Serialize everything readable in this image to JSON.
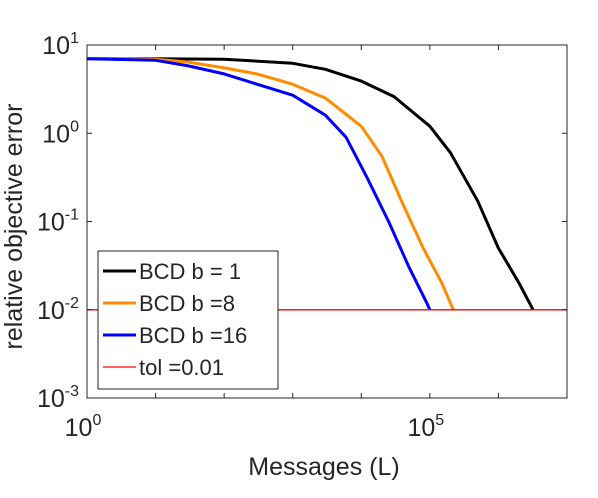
{
  "chart_data": {
    "type": "line",
    "xlabel": "Messages (L)",
    "ylabel": "relative objective error",
    "x_scale": "log",
    "y_scale": "log",
    "xlim": [
      1,
      10000000
    ],
    "ylim": [
      0.001,
      10
    ],
    "x_ticks": [
      {
        "value": 1,
        "base": "10",
        "exp": "0"
      },
      {
        "value": 100000,
        "base": "10",
        "exp": "5"
      }
    ],
    "y_ticks": [
      {
        "value": 0.001,
        "base": "10",
        "exp": "-3"
      },
      {
        "value": 0.01,
        "base": "10",
        "exp": "-2"
      },
      {
        "value": 0.1,
        "base": "10",
        "exp": "-1"
      },
      {
        "value": 1,
        "base": "10",
        "exp": "0"
      },
      {
        "value": 10,
        "base": "10",
        "exp": "1"
      }
    ],
    "grid": false,
    "legend_position": "bottom-left",
    "series": [
      {
        "name": "BCD b = 1",
        "color": "#000000",
        "points": [
          [
            1,
            7.0
          ],
          [
            10,
            7.0
          ],
          [
            100,
            6.9
          ],
          [
            1000,
            6.2
          ],
          [
            3000,
            5.3
          ],
          [
            10000,
            3.9
          ],
          [
            30000,
            2.6
          ],
          [
            100000,
            1.2
          ],
          [
            200000,
            0.6
          ],
          [
            500000,
            0.17
          ],
          [
            1000000,
            0.05
          ],
          [
            2000000,
            0.02
          ],
          [
            3200000,
            0.01
          ]
        ]
      },
      {
        "name": "BCD b =8",
        "color": "#ff8c00",
        "points": [
          [
            1,
            7.0
          ],
          [
            10,
            6.9
          ],
          [
            30,
            6.4
          ],
          [
            100,
            5.5
          ],
          [
            300,
            4.7
          ],
          [
            1000,
            3.6
          ],
          [
            3000,
            2.5
          ],
          [
            10000,
            1.2
          ],
          [
            20000,
            0.55
          ],
          [
            40000,
            0.16
          ],
          [
            80000,
            0.05
          ],
          [
            150000,
            0.02
          ],
          [
            220000,
            0.01
          ]
        ]
      },
      {
        "name": "BCD b =16",
        "color": "#0000ff",
        "points": [
          [
            1,
            7.0
          ],
          [
            10,
            6.7
          ],
          [
            30,
            5.8
          ],
          [
            100,
            4.7
          ],
          [
            300,
            3.6
          ],
          [
            1000,
            2.7
          ],
          [
            3000,
            1.6
          ],
          [
            6000,
            0.9
          ],
          [
            12000,
            0.32
          ],
          [
            25000,
            0.1
          ],
          [
            50000,
            0.03
          ],
          [
            90000,
            0.012
          ],
          [
            100000,
            0.01
          ]
        ]
      },
      {
        "name": "tol =0.01",
        "color": "#ff0000",
        "points": [
          [
            1,
            0.01
          ],
          [
            10000000,
            0.01
          ]
        ]
      }
    ]
  }
}
